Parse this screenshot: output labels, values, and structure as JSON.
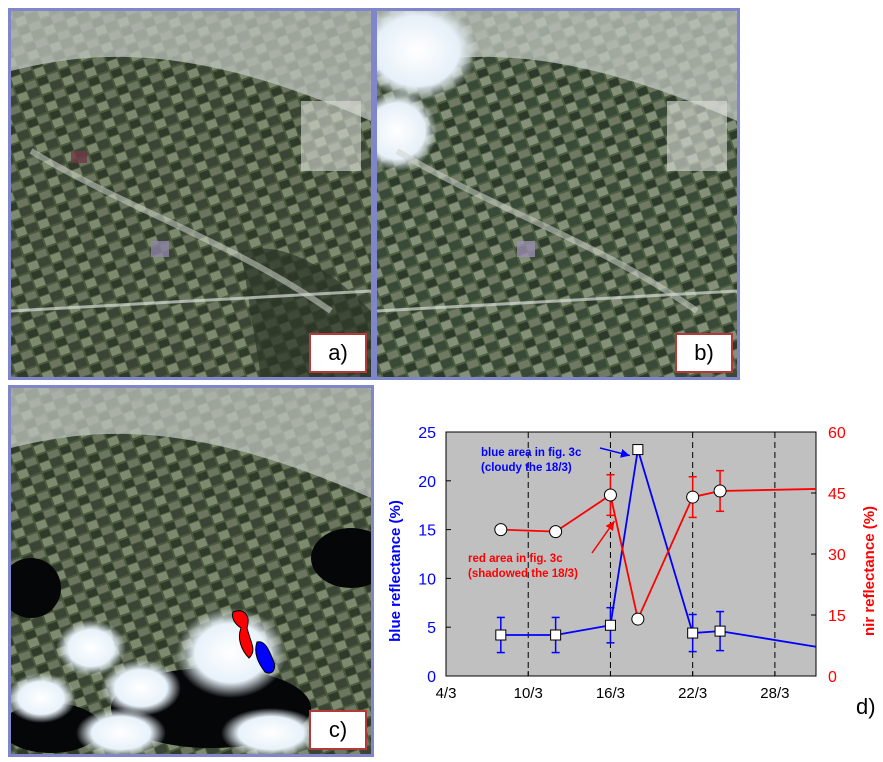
{
  "panels": [
    {
      "label": "a)"
    },
    {
      "label": "b)"
    },
    {
      "label": "c)"
    }
  ],
  "panel_d_label": "d)",
  "colors": {
    "blue_series": "#0000ff",
    "red_series": "#ff0000",
    "plot_background": "#c0c0c0",
    "panel_border": "#7f86c9",
    "label_border": "#b33a3a"
  },
  "chart_data": {
    "type": "line",
    "xlabel": "",
    "ylabel": "blue reflectance (%)",
    "y2label": "nir reflectance (%)",
    "x_ticks": [
      "4/3",
      "10/3",
      "16/3",
      "22/3",
      "28/3"
    ],
    "x_tick_values": [
      4,
      10,
      16,
      22,
      28
    ],
    "xlim": [
      4,
      31
    ],
    "ylim": [
      0,
      25
    ],
    "y_ticks": [
      0,
      5,
      10,
      15,
      20,
      25
    ],
    "y2lim": [
      0,
      60
    ],
    "y2_ticks": [
      0,
      15,
      30,
      45,
      60
    ],
    "vertical_dashed_lines": [
      10,
      16,
      22,
      28
    ],
    "series": [
      {
        "name": "blue area in fig. 3c (cloudy the 18/3)",
        "axis": "left",
        "marker": "square",
        "x": [
          8,
          12,
          16,
          18,
          22,
          24,
          31
        ],
        "y": [
          4.2,
          4.2,
          5.2,
          23.2,
          4.4,
          4.6,
          3.0
        ],
        "error": [
          1.8,
          1.8,
          1.8,
          0,
          1.9,
          2.0,
          0
        ],
        "marker_shown": [
          true,
          true,
          true,
          true,
          true,
          true,
          false
        ]
      },
      {
        "name": "red area in fig. 3c (shadowed the 18/3)",
        "axis": "right",
        "marker": "circle",
        "x": [
          8,
          12,
          16,
          18,
          22,
          24,
          31
        ],
        "y": [
          36,
          35.5,
          44.5,
          14,
          44,
          45.5,
          46
        ],
        "error": [
          0,
          0,
          5,
          1,
          5,
          5,
          0
        ],
        "marker_shown": [
          true,
          true,
          true,
          true,
          true,
          true,
          false
        ]
      }
    ],
    "annotations": [
      {
        "text_lines": [
          "blue area in fig. 3c",
          "(cloudy the 18/3)"
        ],
        "color": "blue"
      },
      {
        "text_lines": [
          "red area in fig. 3c",
          "(shadowed the 18/3)"
        ],
        "color": "red"
      }
    ]
  }
}
